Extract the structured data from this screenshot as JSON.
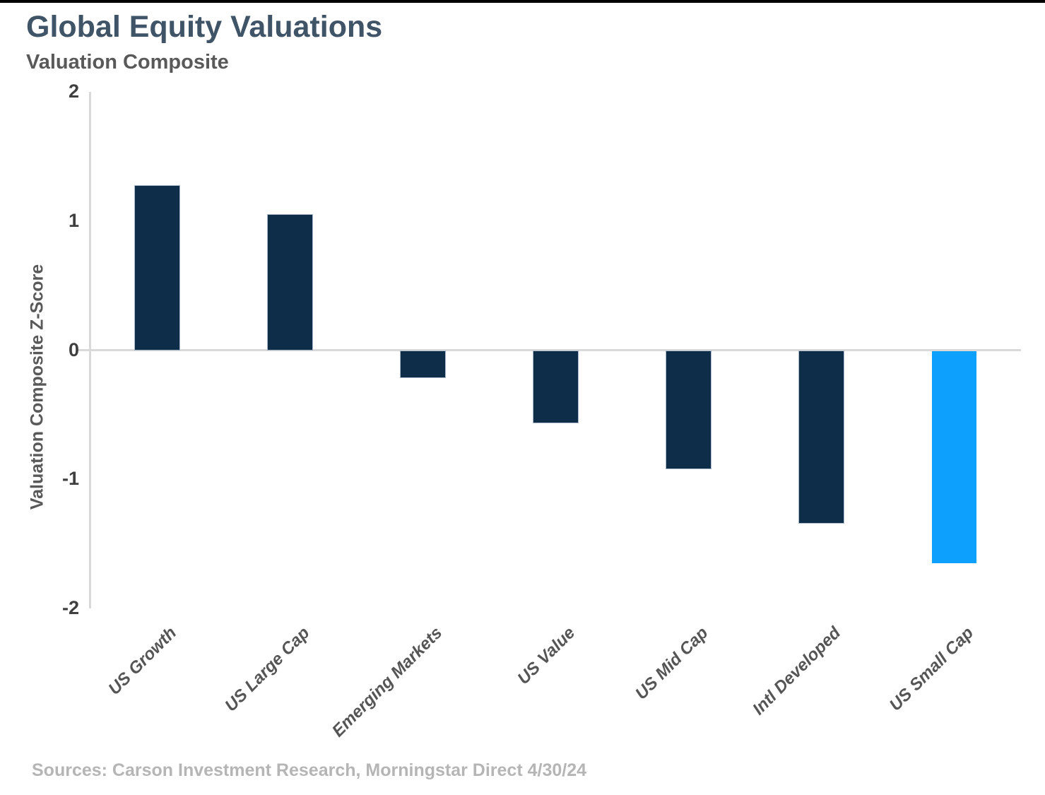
{
  "header": {
    "title": "Global Equity Valuations",
    "subtitle": "Valuation Composite"
  },
  "chart_data": {
    "type": "bar",
    "categories": [
      "US Growth",
      "US Large Cap",
      "Emerging Markets",
      "US Value",
      "US Mid Cap",
      "Intl Developed",
      "US Small Cap"
    ],
    "values": [
      1.27,
      1.05,
      -0.2,
      -0.55,
      -0.91,
      -1.33,
      -1.64
    ],
    "title": "Global Equity Valuations",
    "subtitle": "Valuation Composite",
    "xlabel": "",
    "ylabel": "Valuation Composite Z-Score",
    "ylim": [
      -2,
      2
    ],
    "yticks": [
      2,
      1,
      0,
      -1,
      -2
    ],
    "grid": false,
    "legend": false,
    "bar_color": "#0e2d49",
    "highlight_color": "#0da1fd",
    "highlight_index": 6,
    "bar_border_color": "#a9b9c9"
  },
  "colors": {
    "title": "#405468",
    "subtitle": "#595959",
    "axis_line": "#d9d9d9",
    "tick_label": "#3f3f3f",
    "x_label": "#555555",
    "sources": "#b5b5b5",
    "top_border": "#000000"
  },
  "footer": {
    "sources": "Sources: Carson Investment Research, Morningstar  Direct 4/30/24"
  }
}
